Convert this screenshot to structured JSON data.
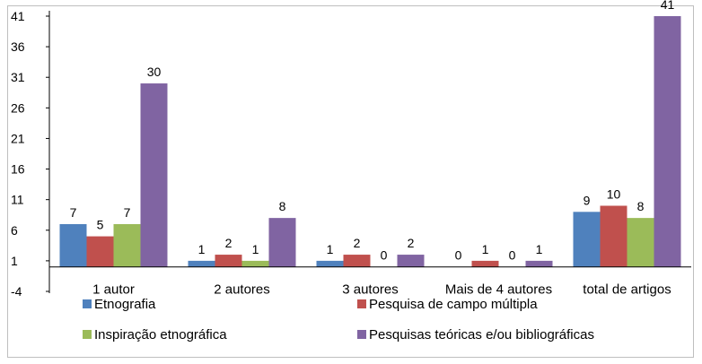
{
  "chart_data": {
    "type": "bar",
    "categories": [
      "1 autor",
      "2 autores",
      "3 autores",
      "Mais de 4 autores",
      "total de artigos"
    ],
    "series": [
      {
        "name": "Etnografia",
        "values": [
          7,
          1,
          1,
          0,
          9
        ],
        "color": "#4F81BD"
      },
      {
        "name": "Pesquisa de campo múltipla",
        "values": [
          5,
          2,
          2,
          1,
          10
        ],
        "color": "#C0504D"
      },
      {
        "name": "Inspiração etnográfica",
        "values": [
          7,
          1,
          0,
          0,
          8
        ],
        "color": "#9BBB59"
      },
      {
        "name": "Pesquisas teóricas e/ou bibliográficas",
        "values": [
          30,
          8,
          2,
          1,
          41
        ],
        "color": "#8064A2"
      }
    ],
    "yticks": [
      41,
      36,
      31,
      26,
      21,
      16,
      11,
      6,
      1,
      -4
    ],
    "ylim": [
      -4,
      41
    ],
    "baseline": 0,
    "grid": false,
    "legend_position": "bottom",
    "title": "",
    "xlabel": "",
    "ylabel": ""
  }
}
